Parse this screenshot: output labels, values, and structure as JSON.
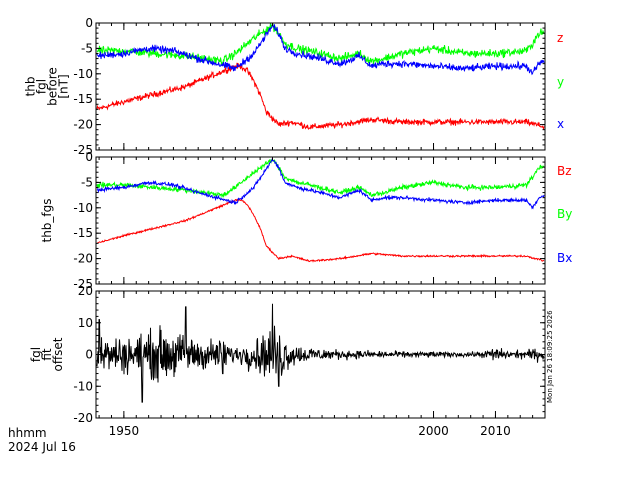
{
  "chart_data": [
    {
      "type": "line",
      "panel": "top",
      "ylabel": [
        "thb",
        "fgl",
        "before",
        "[nT]"
      ],
      "ylim": [
        -25,
        0
      ],
      "yticks": [
        0,
        -5,
        -10,
        -15,
        -20,
        -25
      ],
      "xlim": [
        1945.5,
        2018.0
      ],
      "series": [
        {
          "name": "z",
          "color": "#ff0000",
          "noise": 0.5,
          "x": [
            1945.5,
            1950,
            1955,
            1960,
            1963,
            1966,
            1968,
            1969,
            1970,
            1971,
            1972,
            1973,
            1975,
            1977,
            1980,
            1985,
            1990,
            1995,
            2000,
            2005,
            2010,
            2015,
            2018
          ],
          "y": [
            -17,
            -15.5,
            -14,
            -12.5,
            -11,
            -9.5,
            -8.5,
            -8.5,
            -9.5,
            -11.5,
            -14,
            -17.5,
            -20,
            -19.5,
            -20.5,
            -20,
            -19,
            -19.5,
            -19.5,
            -19.5,
            -19.5,
            -19.5,
            -20.5
          ]
        },
        {
          "name": "y",
          "color": "#00ff00",
          "noise": 0.7,
          "x": [
            1945.5,
            1950,
            1955,
            1960,
            1963,
            1966,
            1968,
            1971,
            1974,
            1975,
            1976,
            1978,
            1980,
            1985,
            1988,
            1990,
            1992,
            1995,
            2000,
            2005,
            2010,
            2015,
            2016,
            2017,
            2018
          ],
          "y": [
            -5.5,
            -5.5,
            -6,
            -6.5,
            -7,
            -7.5,
            -6,
            -3,
            -0.5,
            -2,
            -4,
            -5,
            -5.5,
            -7,
            -6,
            -7.5,
            -7,
            -6,
            -5,
            -6,
            -6,
            -5.5,
            -4,
            -2,
            -2
          ]
        },
        {
          "name": "x",
          "color": "#0000ff",
          "noise": 0.6,
          "x": [
            1945.5,
            1950,
            1954,
            1958,
            1962,
            1965,
            1968,
            1971,
            1974,
            1975,
            1976,
            1978,
            1980,
            1985,
            1988,
            1990,
            1992,
            1995,
            2000,
            2005,
            2010,
            2015,
            2016,
            2017,
            2018
          ],
          "y": [
            -6.5,
            -6,
            -5,
            -5.5,
            -7,
            -8,
            -9,
            -6,
            -0.5,
            -2,
            -5,
            -6,
            -6.5,
            -8,
            -6.5,
            -8.5,
            -8,
            -8,
            -8.5,
            -9,
            -8.5,
            -8.5,
            -10,
            -8,
            -7.5
          ]
        }
      ],
      "legend": [
        "z",
        "y",
        "x"
      ]
    },
    {
      "type": "line",
      "panel": "middle",
      "ylabel": [
        "thb_fgs"
      ],
      "ylim": [
        -25,
        0
      ],
      "yticks": [
        0,
        -5,
        -10,
        -15,
        -20,
        -25
      ],
      "xlim": [
        1945.5,
        2018.0
      ],
      "series": [
        {
          "name": "Bz",
          "color": "#ff0000",
          "noise": 0.15,
          "x": [
            1945.5,
            1950,
            1955,
            1960,
            1963,
            1966,
            1968,
            1969,
            1970,
            1971,
            1972,
            1973,
            1975,
            1977,
            1980,
            1985,
            1990,
            1995,
            2000,
            2005,
            2010,
            2015,
            2018
          ],
          "y": [
            -17,
            -15.5,
            -14,
            -12.5,
            -11,
            -9.5,
            -8.5,
            -8.5,
            -9.5,
            -11.5,
            -14,
            -17.5,
            -20,
            -19.5,
            -20.5,
            -20,
            -19,
            -19.5,
            -19.5,
            -19.5,
            -19.5,
            -19.5,
            -20.5
          ]
        },
        {
          "name": "By",
          "color": "#00ff00",
          "noise": 0.4,
          "x": [
            1945.5,
            1950,
            1955,
            1960,
            1963,
            1966,
            1968,
            1971,
            1974,
            1975,
            1976,
            1978,
            1980,
            1985,
            1988,
            1990,
            1992,
            1995,
            2000,
            2005,
            2010,
            2015,
            2016,
            2017,
            2018
          ],
          "y": [
            -5.5,
            -5.5,
            -6,
            -6.5,
            -7,
            -7.5,
            -6,
            -3,
            -0.5,
            -2,
            -4,
            -5,
            -5.5,
            -7,
            -6,
            -7.5,
            -7,
            -6,
            -5,
            -6,
            -6,
            -5.5,
            -4,
            -2,
            -2
          ]
        },
        {
          "name": "Bx",
          "color": "#0000ff",
          "noise": 0.3,
          "x": [
            1945.5,
            1950,
            1954,
            1958,
            1962,
            1965,
            1968,
            1971,
            1974,
            1975,
            1976,
            1978,
            1980,
            1985,
            1988,
            1990,
            1992,
            1995,
            2000,
            2005,
            2010,
            2015,
            2016,
            2017,
            2018
          ],
          "y": [
            -6.5,
            -6,
            -5,
            -5.5,
            -7,
            -8,
            -9,
            -6,
            -0.5,
            -2,
            -5,
            -6,
            -6.5,
            -8,
            -6.5,
            -8.5,
            -8,
            -8,
            -8.5,
            -9,
            -8.5,
            -8.5,
            -10,
            -8,
            -7.5
          ]
        }
      ],
      "legend": [
        "Bz",
        "By",
        "Bx"
      ]
    },
    {
      "type": "line",
      "panel": "bottom",
      "ylabel": [
        "fgl",
        "fit",
        "offset"
      ],
      "ylim": [
        -20,
        20
      ],
      "yticks": [
        20,
        10,
        0,
        -10,
        -20
      ],
      "xlim": [
        1945.5,
        2018.0
      ],
      "series": [
        {
          "name": "offset",
          "color": "#000000",
          "amp_x": [
            1945.5,
            1952,
            1956,
            1960,
            1964,
            1966,
            1968,
            1972,
            1975,
            1977,
            1980,
            1985,
            1990,
            1995,
            2000,
            2005,
            2008,
            2010,
            2012,
            2015,
            2018
          ],
          "amp_y": [
            4.5,
            5,
            7,
            5,
            4,
            4,
            2,
            5,
            8,
            3,
            2,
            1.2,
            1,
            0.8,
            0.8,
            0.6,
            0.8,
            2,
            1,
            1.2,
            2
          ],
          "spikes": [
            [
              1946,
              11
            ],
            [
              1953,
              -15
            ],
            [
              1960,
              15
            ],
            [
              1966,
              -6
            ],
            [
              1974,
              16
            ],
            [
              1975,
              -10
            ]
          ]
        }
      ]
    }
  ],
  "xaxis": {
    "tick_labels": [
      "1950",
      "2000",
      "2010"
    ],
    "major_ticks": [
      1950,
      2000,
      2010
    ],
    "minor_step": 2,
    "left_label": "hhmm",
    "date_label": "2024 Jul 16"
  },
  "timestamp": "Mon Jan 26 18:09:25 2026",
  "colors": {
    "red": "#ff0000",
    "green": "#00ff00",
    "blue": "#0000ff",
    "axis": "#000000"
  }
}
